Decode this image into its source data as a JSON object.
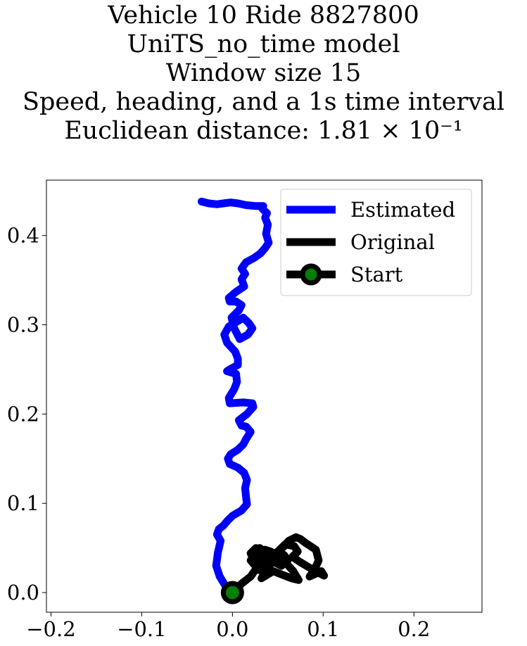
{
  "chart_data": {
    "type": "line",
    "title_lines": [
      "Vehicle 10 Ride 8827800",
      "UniTS_no_time model",
      "Window size 15",
      "Speed, heading, and a 1s time interval",
      "Euclidean distance: 1.81 × 10⁻¹"
    ],
    "xlim": [
      -0.205,
      0.275
    ],
    "ylim": [
      -0.022,
      0.462
    ],
    "xticks": [
      -0.2,
      -0.1,
      0.0,
      0.1,
      0.2
    ],
    "xtick_labels": [
      "−0.2",
      "−0.1",
      "0.0",
      "0.1",
      "0.2"
    ],
    "yticks": [
      0.0,
      0.1,
      0.2,
      0.3,
      0.4
    ],
    "ytick_labels": [
      "0.0",
      "0.1",
      "0.2",
      "0.3",
      "0.4"
    ],
    "grid": false,
    "legend_position": "upper right",
    "series": [
      {
        "name": "Estimated",
        "color": "#0000ff",
        "x": [
          0.0,
          -0.008,
          -0.014,
          -0.018,
          -0.016,
          -0.013,
          -0.017,
          -0.015,
          -0.01,
          -0.005,
          0.0,
          0.01,
          0.016,
          0.015,
          0.014,
          0.016,
          0.013,
          0.006,
          -0.003,
          -0.005,
          -0.002,
          0.006,
          0.012,
          0.015,
          0.02,
          0.015,
          0.01,
          0.007,
          0.016,
          0.023,
          0.022,
          0.012,
          -0.003,
          -0.004,
          0.002,
          0.005,
          0.004,
          -0.006,
          -0.003,
          0.006,
          0.006,
          0.003,
          -0.006,
          -0.009,
          -0.004,
          0.006,
          0.012,
          0.018,
          0.022,
          0.017,
          0.008,
          0.002,
          -0.001,
          0.007,
          0.01,
          0.004,
          -0.003,
          -0.004,
          0.004,
          0.013,
          0.01,
          0.014,
          0.01,
          0.015,
          0.024,
          0.031,
          0.036,
          0.04,
          0.037,
          0.039,
          0.036,
          0.038,
          0.033,
          0.034,
          0.026,
          0.015,
          0.006,
          -0.002,
          -0.01,
          -0.017,
          -0.026,
          -0.034
        ],
        "y": [
          0.0,
          0.008,
          0.018,
          0.03,
          0.045,
          0.058,
          0.065,
          0.071,
          0.075,
          0.081,
          0.086,
          0.092,
          0.099,
          0.107,
          0.117,
          0.126,
          0.134,
          0.14,
          0.144,
          0.15,
          0.155,
          0.16,
          0.166,
          0.172,
          0.18,
          0.186,
          0.187,
          0.193,
          0.2,
          0.208,
          0.212,
          0.213,
          0.212,
          0.218,
          0.228,
          0.236,
          0.245,
          0.248,
          0.25,
          0.255,
          0.262,
          0.27,
          0.28,
          0.289,
          0.298,
          0.304,
          0.308,
          0.302,
          0.296,
          0.289,
          0.284,
          0.296,
          0.308,
          0.316,
          0.322,
          0.326,
          0.326,
          0.33,
          0.337,
          0.343,
          0.351,
          0.357,
          0.363,
          0.37,
          0.375,
          0.38,
          0.386,
          0.392,
          0.402,
          0.412,
          0.42,
          0.425,
          0.43,
          0.433,
          0.433,
          0.434,
          0.436,
          0.437,
          0.436,
          0.435,
          0.436,
          0.438
        ]
      },
      {
        "name": "Original",
        "color": "#000000",
        "x": [
          0.0,
          0.01,
          0.02,
          0.027,
          0.02,
          0.025,
          0.03,
          0.035,
          0.038,
          0.033,
          0.028,
          0.034,
          0.04,
          0.044,
          0.048,
          0.055,
          0.062,
          0.07,
          0.075,
          0.08,
          0.092,
          0.095,
          0.09,
          0.085,
          0.098,
          0.101,
          0.088,
          0.075,
          0.066,
          0.072,
          0.068,
          0.058,
          0.052,
          0.046,
          0.04,
          0.036,
          0.032,
          0.045,
          0.055,
          0.065,
          0.073,
          0.067,
          0.06,
          0.052,
          0.042,
          0.036,
          0.03,
          0.024,
          0.02,
          0.026,
          0.032,
          0.038,
          0.046,
          0.054,
          0.061,
          0.057,
          0.05,
          0.041,
          0.033,
          0.026,
          0.032,
          0.036,
          0.04,
          0.038
        ],
        "y": [
          0.0,
          0.01,
          0.018,
          0.028,
          0.036,
          0.044,
          0.05,
          0.046,
          0.04,
          0.034,
          0.027,
          0.022,
          0.028,
          0.036,
          0.044,
          0.05,
          0.058,
          0.062,
          0.06,
          0.056,
          0.048,
          0.036,
          0.025,
          0.018,
          0.024,
          0.019,
          0.026,
          0.034,
          0.04,
          0.046,
          0.052,
          0.054,
          0.048,
          0.04,
          0.03,
          0.022,
          0.016,
          0.024,
          0.02,
          0.016,
          0.014,
          0.024,
          0.032,
          0.04,
          0.046,
          0.048,
          0.042,
          0.036,
          0.044,
          0.05,
          0.046,
          0.04,
          0.034,
          0.03,
          0.036,
          0.042,
          0.046,
          0.04,
          0.034,
          0.028,
          0.032,
          0.038,
          0.034,
          0.03
        ]
      }
    ],
    "start_marker": {
      "name": "Start",
      "x": 0.0,
      "y": 0.0,
      "face_color": "#008000",
      "edge_color": "#000000"
    },
    "legend": [
      {
        "label": "Estimated",
        "color": "#0000ff",
        "marker": false
      },
      {
        "label": "Original",
        "color": "#000000",
        "marker": false
      },
      {
        "label": "Start",
        "color": "#000000",
        "marker": true
      }
    ]
  }
}
